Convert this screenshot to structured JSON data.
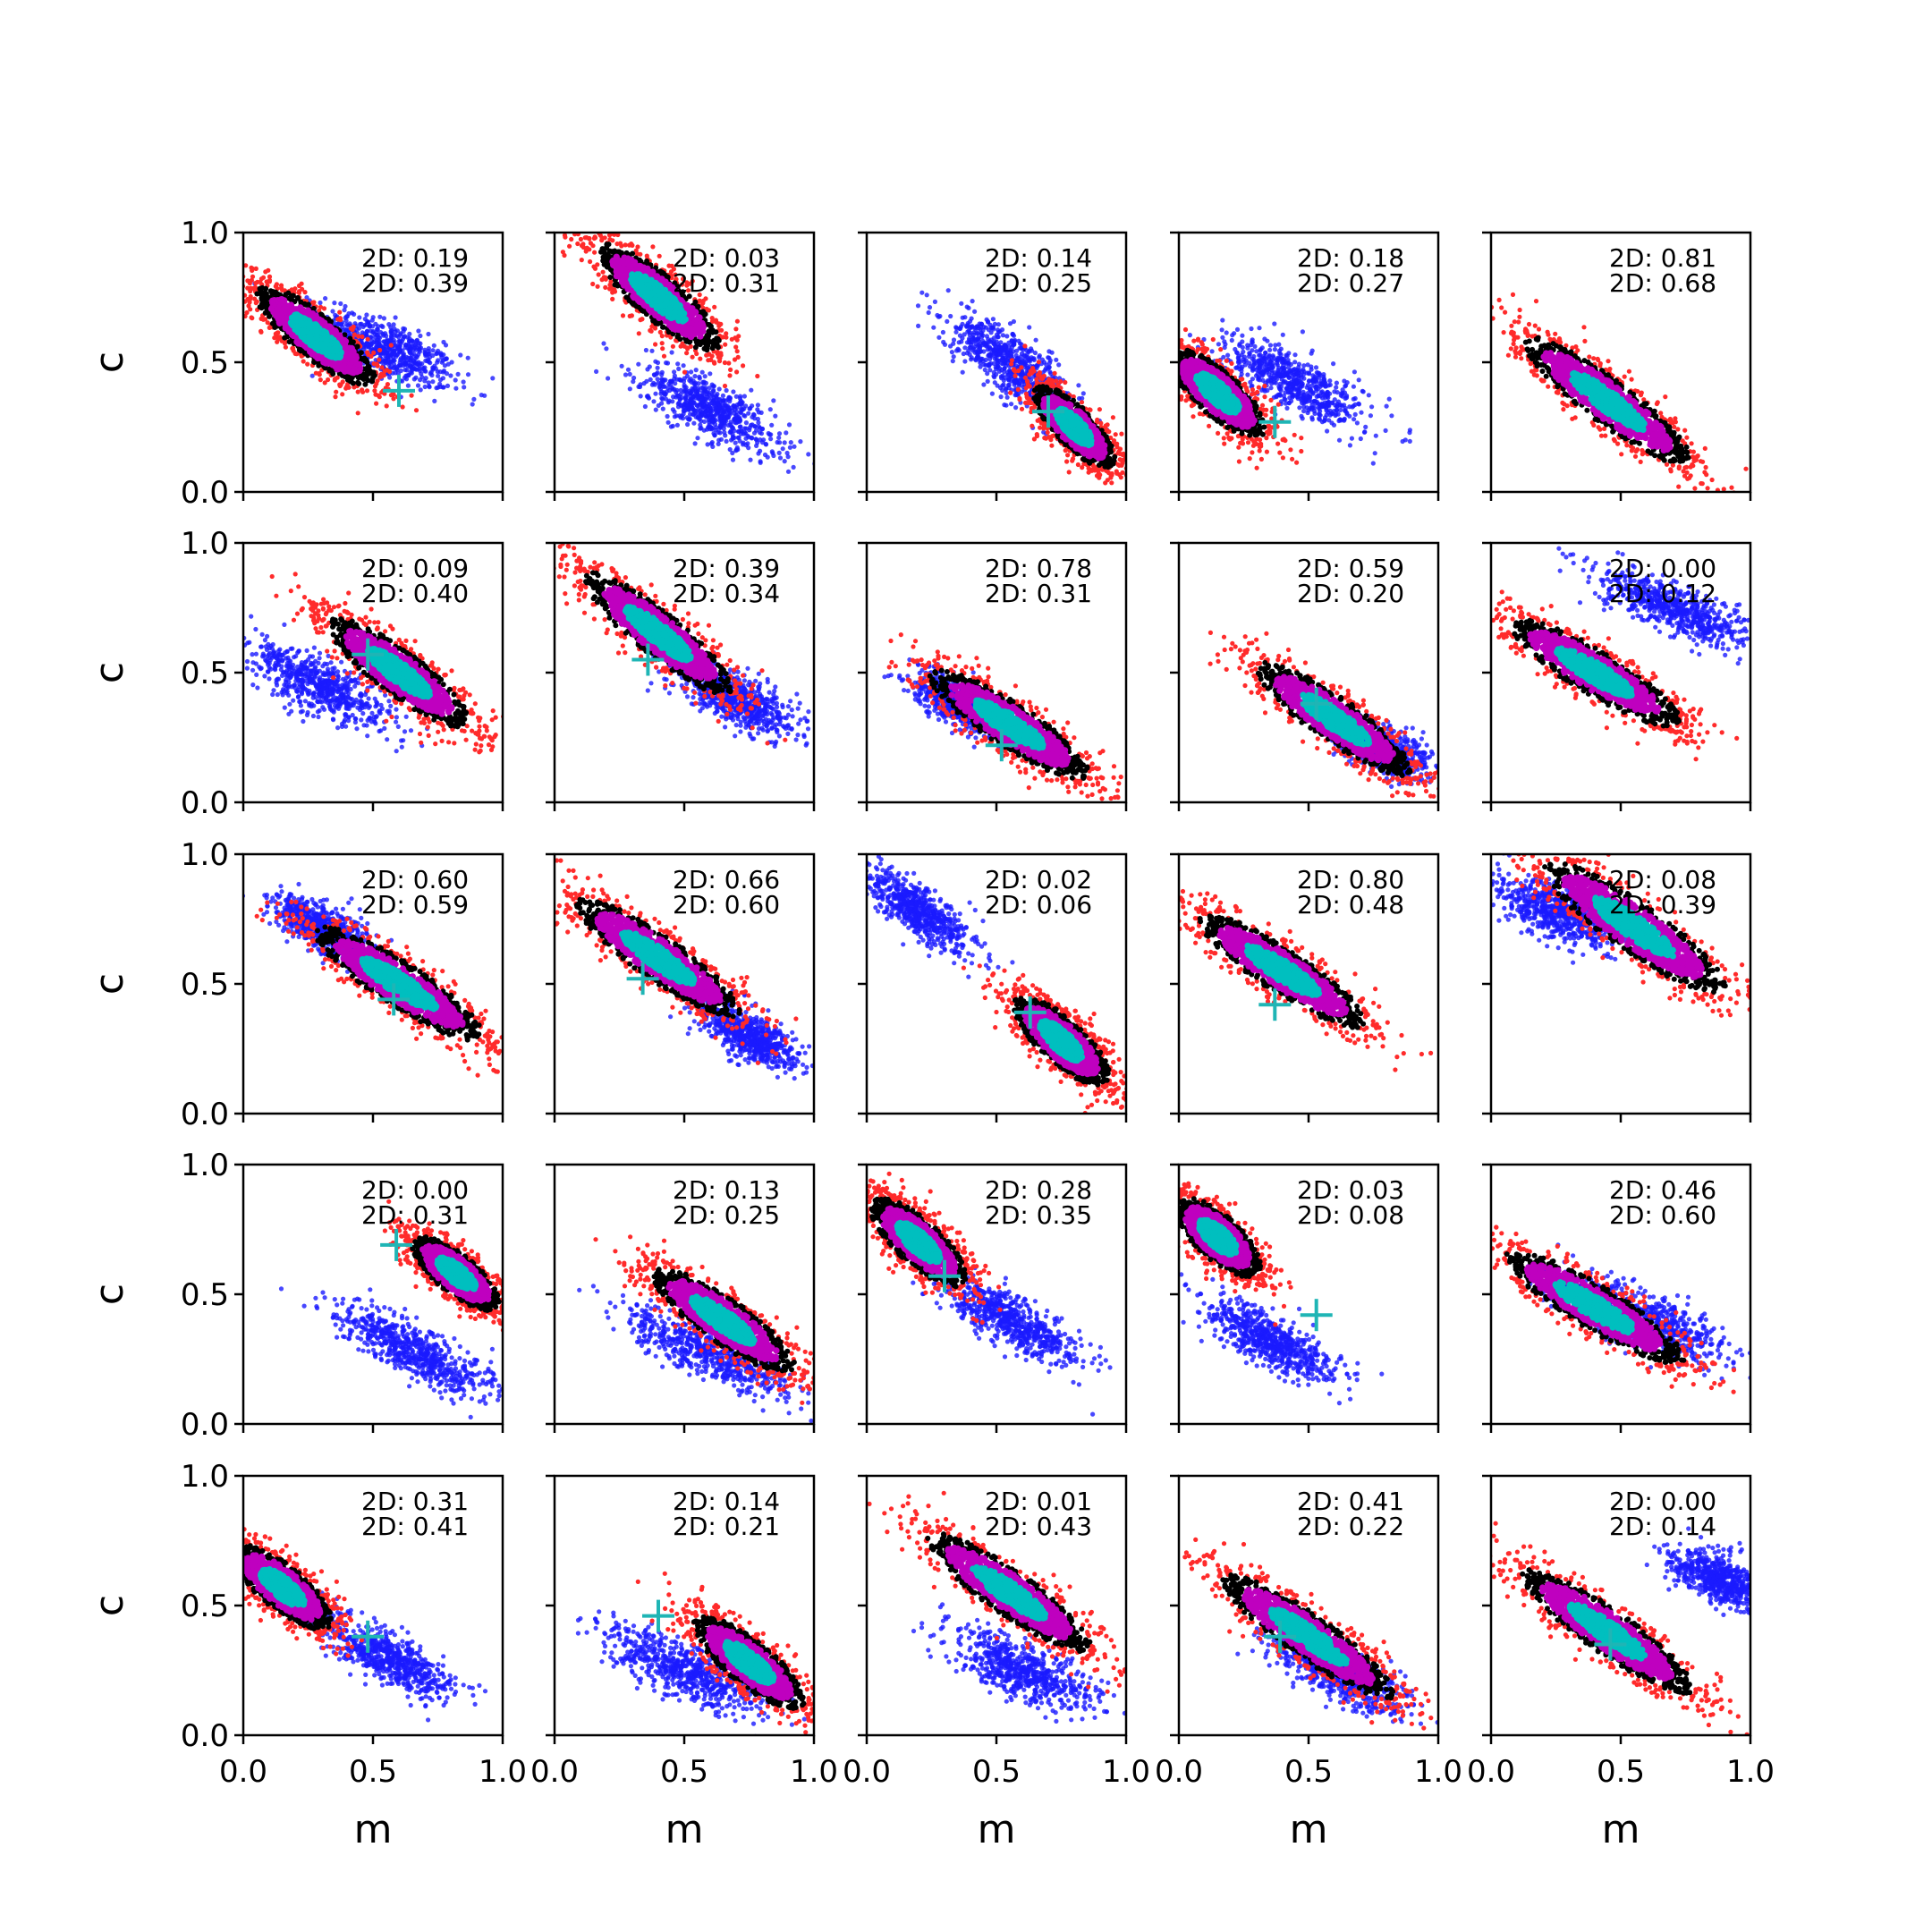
{
  "chart_data": {
    "type": "scatter",
    "layout": {
      "rows": 5,
      "cols": 5
    },
    "xlabel": "m",
    "ylabel": "c",
    "xlim": [
      0,
      1
    ],
    "ylim": [
      0,
      1
    ],
    "xticks": [
      "0.0",
      "0.5",
      "1.0"
    ],
    "yticks": [
      "0.0",
      "0.5",
      "1.0"
    ],
    "grid": false,
    "legend": "none",
    "colors": {
      "outer": "#ff2b2b",
      "ring": "#000000",
      "middle": "#bf00bf",
      "core": "#00bfbf",
      "alt": "#1a1aff",
      "marker": "#1fb5b5"
    },
    "annotation_prefix": "2D:",
    "panels": [
      {
        "a1": "0.19",
        "a2": "0.39",
        "main": {
          "cx": 0.28,
          "cy": 0.6,
          "slope": -0.8,
          "len": 0.3,
          "wid": 0.09
        },
        "alt": {
          "cx": 0.55,
          "cy": 0.55,
          "slope": -0.45,
          "len": 0.28,
          "wid": 0.1
        },
        "marker": [
          0.6,
          0.39
        ]
      },
      {
        "a1": "0.03",
        "a2": "0.31",
        "main": {
          "cx": 0.4,
          "cy": 0.75,
          "slope": -0.85,
          "len": 0.32,
          "wid": 0.09
        },
        "alt": {
          "cx": 0.6,
          "cy": 0.32,
          "slope": -0.55,
          "len": 0.3,
          "wid": 0.1
        },
        "marker": null
      },
      {
        "a1": "0.14",
        "a2": "0.25",
        "main": {
          "cx": 0.8,
          "cy": 0.25,
          "slope": -1.0,
          "len": 0.22,
          "wid": 0.08
        },
        "alt": {
          "cx": 0.55,
          "cy": 0.5,
          "slope": -0.75,
          "len": 0.28,
          "wid": 0.1
        },
        "marker": [
          0.7,
          0.31
        ]
      },
      {
        "a1": "0.18",
        "a2": "0.27",
        "main": {
          "cx": 0.15,
          "cy": 0.38,
          "slope": -0.9,
          "len": 0.25,
          "wid": 0.09
        },
        "alt": {
          "cx": 0.45,
          "cy": 0.42,
          "slope": -0.5,
          "len": 0.3,
          "wid": 0.1
        },
        "marker": [
          0.37,
          0.27
        ]
      },
      {
        "a1": "0.81",
        "a2": "0.68",
        "main": {
          "cx": 0.45,
          "cy": 0.35,
          "slope": -0.75,
          "len": 0.42,
          "wid": 0.09
        },
        "alt": null,
        "marker": null
      },
      {
        "a1": "0.09",
        "a2": "0.40",
        "main": {
          "cx": 0.6,
          "cy": 0.5,
          "slope": -0.75,
          "len": 0.35,
          "wid": 0.09
        },
        "alt": {
          "cx": 0.3,
          "cy": 0.45,
          "slope": -0.5,
          "len": 0.3,
          "wid": 0.1
        },
        "marker": [
          0.48,
          0.57
        ]
      },
      {
        "a1": "0.39",
        "a2": "0.34",
        "main": {
          "cx": 0.4,
          "cy": 0.65,
          "slope": -0.8,
          "len": 0.38,
          "wid": 0.09
        },
        "alt": {
          "cx": 0.7,
          "cy": 0.4,
          "slope": -0.5,
          "len": 0.25,
          "wid": 0.09
        },
        "marker": [
          0.36,
          0.55
        ]
      },
      {
        "a1": "0.78",
        "a2": "0.31",
        "main": {
          "cx": 0.55,
          "cy": 0.3,
          "slope": -0.65,
          "len": 0.38,
          "wid": 0.09
        },
        "alt": {
          "cx": 0.35,
          "cy": 0.38,
          "slope": -0.5,
          "len": 0.2,
          "wid": 0.08
        },
        "marker": [
          0.52,
          0.22
        ]
      },
      {
        "a1": "0.59",
        "a2": "0.20",
        "main": {
          "cx": 0.6,
          "cy": 0.32,
          "slope": -0.7,
          "len": 0.38,
          "wid": 0.09
        },
        "alt": {
          "cx": 0.8,
          "cy": 0.2,
          "slope": -0.45,
          "len": 0.2,
          "wid": 0.08
        },
        "marker": [
          0.53,
          0.38
        ]
      },
      {
        "a1": "0.00",
        "a2": "0.12",
        "main": {
          "cx": 0.4,
          "cy": 0.5,
          "slope": -0.6,
          "len": 0.4,
          "wid": 0.09
        },
        "alt": {
          "cx": 0.7,
          "cy": 0.75,
          "slope": -0.4,
          "len": 0.32,
          "wid": 0.09
        },
        "marker": null
      },
      {
        "a1": "0.60",
        "a2": "0.59",
        "main": {
          "cx": 0.6,
          "cy": 0.5,
          "slope": -0.65,
          "len": 0.4,
          "wid": 0.09
        },
        "alt": {
          "cx": 0.3,
          "cy": 0.72,
          "slope": -0.5,
          "len": 0.2,
          "wid": 0.08
        },
        "marker": [
          0.58,
          0.44
        ]
      },
      {
        "a1": "0.66",
        "a2": "0.60",
        "main": {
          "cx": 0.4,
          "cy": 0.6,
          "slope": -0.7,
          "len": 0.4,
          "wid": 0.09
        },
        "alt": {
          "cx": 0.75,
          "cy": 0.3,
          "slope": -0.55,
          "len": 0.2,
          "wid": 0.08
        },
        "marker": [
          0.34,
          0.52
        ]
      },
      {
        "a1": "0.02",
        "a2": "0.06",
        "main": {
          "cx": 0.75,
          "cy": 0.28,
          "slope": -0.9,
          "len": 0.25,
          "wid": 0.09
        },
        "alt": {
          "cx": 0.2,
          "cy": 0.78,
          "slope": -0.7,
          "len": 0.25,
          "wid": 0.08
        },
        "marker": [
          0.63,
          0.39
        ]
      },
      {
        "a1": "0.80",
        "a2": "0.48",
        "main": {
          "cx": 0.4,
          "cy": 0.55,
          "slope": -0.65,
          "len": 0.4,
          "wid": 0.09
        },
        "alt": null,
        "marker": [
          0.37,
          0.42
        ]
      },
      {
        "a1": "0.08",
        "a2": "0.39",
        "main": {
          "cx": 0.55,
          "cy": 0.72,
          "slope": -0.7,
          "len": 0.45,
          "wid": 0.1
        },
        "alt": {
          "cx": 0.25,
          "cy": 0.78,
          "slope": -0.45,
          "len": 0.25,
          "wid": 0.1
        },
        "marker": null
      },
      {
        "a1": "0.00",
        "a2": "0.31",
        "main": {
          "cx": 0.82,
          "cy": 0.58,
          "slope": -0.8,
          "len": 0.22,
          "wid": 0.08
        },
        "alt": {
          "cx": 0.65,
          "cy": 0.28,
          "slope": -0.55,
          "len": 0.35,
          "wid": 0.09
        },
        "marker": [
          0.59,
          0.69
        ]
      },
      {
        "a1": "0.13",
        "a2": "0.25",
        "main": {
          "cx": 0.65,
          "cy": 0.4,
          "slope": -0.7,
          "len": 0.35,
          "wid": 0.09
        },
        "alt": {
          "cx": 0.6,
          "cy": 0.28,
          "slope": -0.45,
          "len": 0.35,
          "wid": 0.09
        },
        "marker": null
      },
      {
        "a1": "0.28",
        "a2": "0.35",
        "main": {
          "cx": 0.2,
          "cy": 0.7,
          "slope": -0.9,
          "len": 0.25,
          "wid": 0.09
        },
        "alt": {
          "cx": 0.55,
          "cy": 0.4,
          "slope": -0.55,
          "len": 0.3,
          "wid": 0.09
        },
        "marker": [
          0.3,
          0.57
        ]
      },
      {
        "a1": "0.03",
        "a2": "0.08",
        "main": {
          "cx": 0.15,
          "cy": 0.72,
          "slope": -0.9,
          "len": 0.22,
          "wid": 0.09
        },
        "alt": {
          "cx": 0.35,
          "cy": 0.32,
          "slope": -0.55,
          "len": 0.28,
          "wid": 0.09
        },
        "marker": [
          0.53,
          0.42
        ]
      },
      {
        "a1": "0.46",
        "a2": "0.60",
        "main": {
          "cx": 0.4,
          "cy": 0.45,
          "slope": -0.6,
          "len": 0.42,
          "wid": 0.09
        },
        "alt": {
          "cx": 0.6,
          "cy": 0.4,
          "slope": -0.45,
          "len": 0.35,
          "wid": 0.1
        },
        "marker": null
      },
      {
        "a1": "0.31",
        "a2": "0.41",
        "main": {
          "cx": 0.15,
          "cy": 0.57,
          "slope": -0.8,
          "len": 0.25,
          "wid": 0.09
        },
        "alt": {
          "cx": 0.55,
          "cy": 0.3,
          "slope": -0.55,
          "len": 0.28,
          "wid": 0.09
        },
        "marker": [
          0.48,
          0.38
        ]
      },
      {
        "a1": "0.14",
        "a2": "0.21",
        "main": {
          "cx": 0.75,
          "cy": 0.28,
          "slope": -0.8,
          "len": 0.28,
          "wid": 0.09
        },
        "alt": {
          "cx": 0.5,
          "cy": 0.25,
          "slope": -0.45,
          "len": 0.35,
          "wid": 0.1
        },
        "marker": [
          0.4,
          0.46
        ]
      },
      {
        "a1": "0.01",
        "a2": "0.43",
        "main": {
          "cx": 0.55,
          "cy": 0.55,
          "slope": -0.7,
          "len": 0.4,
          "wid": 0.09
        },
        "alt": {
          "cx": 0.6,
          "cy": 0.25,
          "slope": -0.45,
          "len": 0.3,
          "wid": 0.1
        },
        "marker": null
      },
      {
        "a1": "0.41",
        "a2": "0.22",
        "main": {
          "cx": 0.5,
          "cy": 0.38,
          "slope": -0.7,
          "len": 0.42,
          "wid": 0.09
        },
        "alt": {
          "cx": 0.6,
          "cy": 0.25,
          "slope": -0.55,
          "len": 0.3,
          "wid": 0.09
        },
        "marker": [
          0.39,
          0.38
        ]
      },
      {
        "a1": "0.00",
        "a2": "0.14",
        "main": {
          "cx": 0.45,
          "cy": 0.4,
          "slope": -0.7,
          "len": 0.42,
          "wid": 0.09
        },
        "alt": {
          "cx": 0.88,
          "cy": 0.6,
          "slope": -0.5,
          "len": 0.2,
          "wid": 0.09
        },
        "marker": [
          0.46,
          0.35
        ]
      }
    ]
  }
}
